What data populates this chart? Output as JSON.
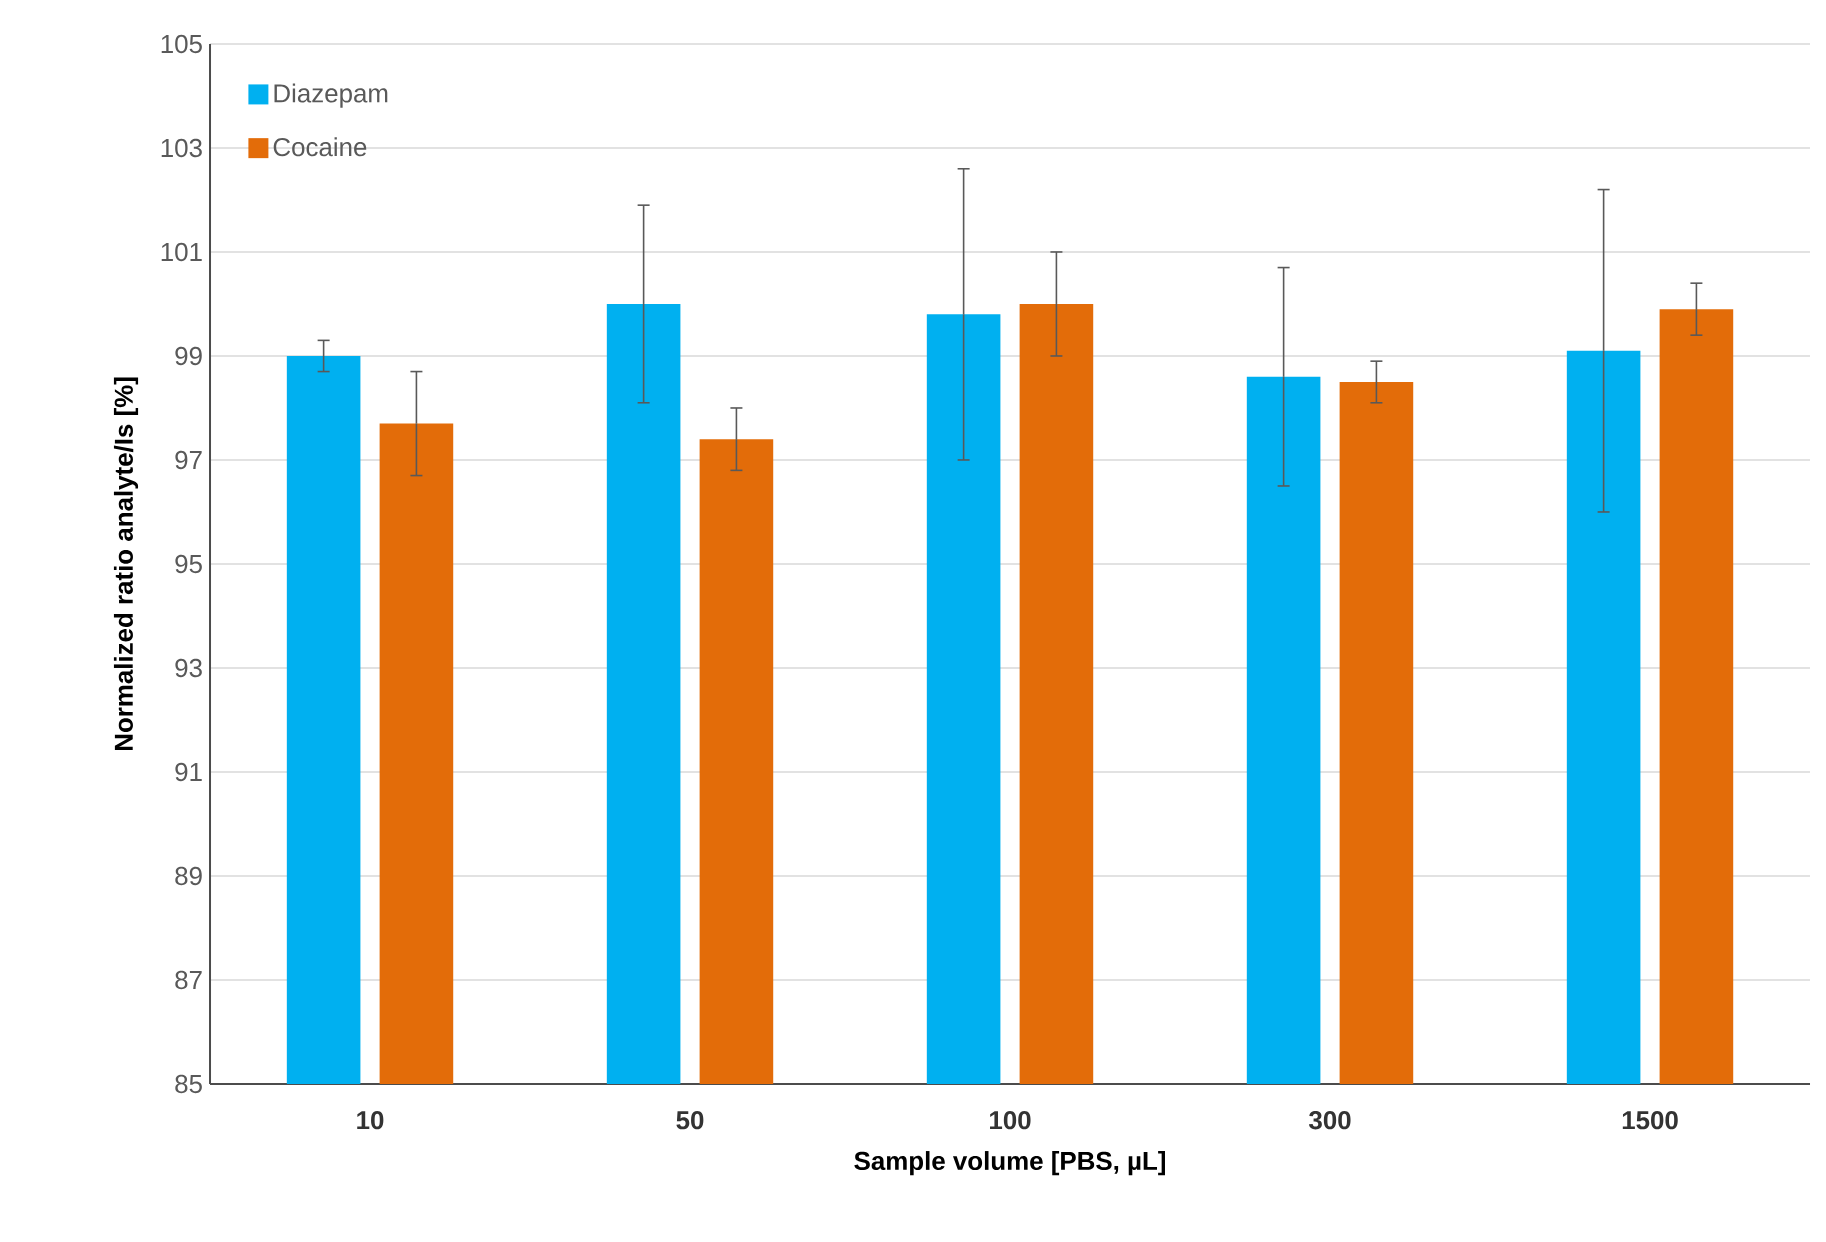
{
  "chart_data": {
    "type": "bar",
    "xlabel": "Sample volume [PBS, µL]",
    "ylabel": "Normalized ratio analyte/Is [%]",
    "categories": [
      "10",
      "50",
      "100",
      "300",
      "1500"
    ],
    "series": [
      {
        "name": "Diazepam",
        "color": "#00b0f0",
        "values": [
          99.0,
          100.0,
          99.8,
          98.6,
          99.1
        ],
        "errors": [
          0.3,
          1.9,
          2.8,
          2.1,
          3.1
        ]
      },
      {
        "name": "Cocaine",
        "color": "#e36c09",
        "values": [
          97.7,
          97.4,
          100.0,
          98.5,
          99.9
        ],
        "errors": [
          1.0,
          0.6,
          1.0,
          0.4,
          0.5
        ]
      }
    ],
    "ylim": [
      85,
      105
    ],
    "yticks": [
      85,
      87,
      89,
      91,
      93,
      95,
      97,
      99,
      101,
      103,
      105
    ],
    "grid": "y",
    "legend": "top left"
  }
}
